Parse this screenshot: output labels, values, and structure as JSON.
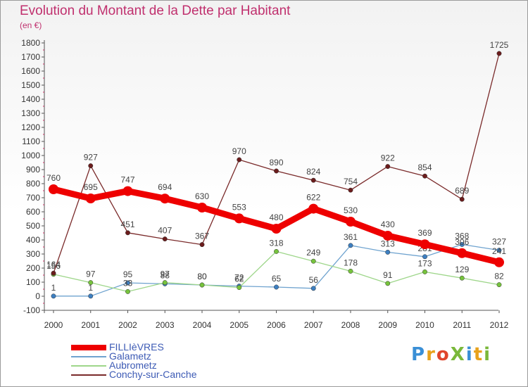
{
  "title": "Evolution du Montant de la Dette par Habitant",
  "subtitle": "(en €)",
  "brand": {
    "text": "ProXiti",
    "letter_colors": [
      "#3a8fd6",
      "#e8a21c",
      "#e0452c",
      "#7ab83a",
      "#3a8fd6",
      "#e8a21c",
      "#7ab83a"
    ]
  },
  "chart_data": {
    "type": "line",
    "title": "Evolution du Montant de la Dette par Habitant",
    "subtitle": "(en €)",
    "xlabel": "",
    "ylabel": "",
    "x": [
      "2000",
      "2001",
      "2002",
      "2003",
      "2004",
      "2005",
      "2006",
      "2007",
      "2008",
      "2009",
      "2010",
      "2011",
      "2012"
    ],
    "yticks": [
      "-100",
      "0",
      "100",
      "200",
      "300",
      "400",
      "500",
      "600",
      "700",
      "800",
      "900",
      "1000",
      "1100",
      "1200",
      "1300",
      "1400",
      "1500",
      "1600",
      "1700",
      "1800"
    ],
    "ylim": [
      -100,
      1800
    ],
    "grid": false,
    "legend_position": "bottom-left",
    "series": [
      {
        "name": "FILLIèVRES",
        "color": "#ee0000",
        "marker": "#ee0000",
        "bold": true,
        "values": [
          760,
          695,
          747,
          694,
          630,
          553,
          480,
          622,
          530,
          430,
          369,
          306,
          241
        ],
        "labels": [
          "760",
          "695",
          "747",
          "694",
          "630",
          "553",
          "480",
          "622",
          "530",
          "430",
          "369",
          "306",
          "241"
        ]
      },
      {
        "name": "Galametz",
        "color": "#6fa3cf",
        "marker": "#3d7fc1",
        "bold": false,
        "values": [
          1,
          1,
          95,
          88,
          80,
          72,
          65,
          56,
          361,
          313,
          281,
          368,
          327
        ],
        "labels": [
          "1",
          "1",
          "95",
          "88",
          "80",
          "72",
          "65",
          "56",
          "361",
          "313",
          "281",
          "368",
          "327"
        ]
      },
      {
        "name": "Aubrometz",
        "color": "#9ed68a",
        "marker": "#76c33c",
        "bold": false,
        "values": [
          156,
          97,
          33,
          97,
          80,
          62,
          318,
          249,
          178,
          91,
          173,
          129,
          82
        ],
        "labels": [
          "156",
          "97",
          "33",
          "97",
          "80",
          "62",
          "318",
          "249",
          "178",
          "91",
          "173",
          "129",
          "82"
        ]
      },
      {
        "name": "Conchy-sur-Canche",
        "color": "#7a2a2a",
        "marker": "#6b1c1c",
        "bold": false,
        "values": [
          164,
          927,
          451,
          407,
          367,
          970,
          890,
          824,
          754,
          922,
          854,
          689,
          1725
        ],
        "labels": [
          "164",
          "927",
          "451",
          "407",
          "367",
          "970",
          "890",
          "824",
          "754",
          "922",
          "854",
          "689",
          "1725"
        ]
      }
    ]
  }
}
